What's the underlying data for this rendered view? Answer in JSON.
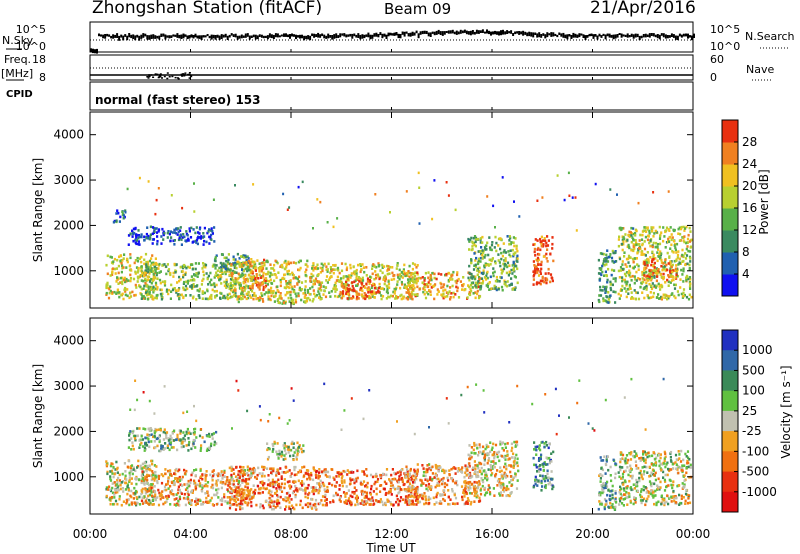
{
  "header": {
    "station": "Zhongshan Station (fitACF)",
    "beam": "Beam 09",
    "date": "21/Apr/2016"
  },
  "top_panels": {
    "nsky_label": "N.Sky",
    "nsky_ticks": [
      "10^5",
      "10^0"
    ],
    "nsearch_label": "N.Search",
    "nsearch_ticks": [
      "10^5",
      "10^0"
    ],
    "freq_label": "Freq.",
    "freq_unit": "[MHz]",
    "freq_ticks": [
      "18",
      "8"
    ],
    "nave_label": "Nave",
    "nave_ticks": [
      "60",
      "0"
    ],
    "cpid_label": "CPID",
    "cpid_value": "normal (fast stereo) 153"
  },
  "chart_data": [
    {
      "type": "heatmap",
      "panel": "power",
      "ylabel": "Slant Range [km]",
      "ylim": [
        180,
        4500
      ],
      "yticks": [
        "1000",
        "2000",
        "3000",
        "4000"
      ],
      "xlim": [
        0,
        24
      ],
      "colorbar_label": "Power [dB]",
      "colorbar_ticks": [
        "4",
        "8",
        "12",
        "16",
        "20",
        "24",
        "28"
      ],
      "colorbar_colors": [
        "#1010f0",
        "#2060b0",
        "#3a8a60",
        "#58b048",
        "#b8d030",
        "#f0c020",
        "#f08020",
        "#e83010"
      ],
      "scatter_regions": [
        {
          "t": [
            0.6,
            2.6
          ],
          "r": [
            400,
            1400
          ],
          "level": 0.6
        },
        {
          "t": [
            0.9,
            1.4
          ],
          "r": [
            2100,
            2400
          ],
          "level": 0.2
        },
        {
          "t": [
            1.5,
            5.0
          ],
          "r": [
            1600,
            2000
          ],
          "level": 0.15
        },
        {
          "t": [
            2.0,
            6.5
          ],
          "r": [
            400,
            1200
          ],
          "level": 0.5
        },
        {
          "t": [
            4.8,
            6.3
          ],
          "r": [
            1000,
            1400
          ],
          "level": 0.35
        },
        {
          "t": [
            5.5,
            9.0
          ],
          "r": [
            300,
            1250
          ],
          "level": 0.6
        },
        {
          "t": [
            6.3,
            7.0
          ],
          "r": [
            600,
            1300
          ],
          "level": 0.85
        },
        {
          "t": [
            9.0,
            13.0
          ],
          "r": [
            400,
            1200
          ],
          "level": 0.6
        },
        {
          "t": [
            10.0,
            11.5
          ],
          "r": [
            400,
            900
          ],
          "level": 0.85
        },
        {
          "t": [
            12.5,
            15.5
          ],
          "r": [
            400,
            1000
          ],
          "level": 0.7
        },
        {
          "t": [
            15.0,
            17.0
          ],
          "r": [
            600,
            1800
          ],
          "level": 0.45
        },
        {
          "t": [
            17.6,
            18.4
          ],
          "r": [
            700,
            1800
          ],
          "level": 0.95
        },
        {
          "t": [
            20.2,
            20.9
          ],
          "r": [
            300,
            1500
          ],
          "level": 0.35
        },
        {
          "t": [
            21.0,
            23.9
          ],
          "r": [
            400,
            2000
          ],
          "level": 0.55
        },
        {
          "t": [
            22.0,
            23.3
          ],
          "r": [
            800,
            1300
          ],
          "level": 0.8
        }
      ]
    },
    {
      "type": "heatmap",
      "panel": "velocity",
      "ylabel": "Slant Range [km]",
      "ylim": [
        180,
        4500
      ],
      "yticks": [
        "1000",
        "2000",
        "3000",
        "4000"
      ],
      "xlim": [
        0,
        24
      ],
      "colorbar_label": "Velocity [m s⁻¹]",
      "colorbar_ticks": [
        "1000",
        "500",
        "100",
        "25",
        "-25",
        "-100",
        "-500",
        "-1000"
      ],
      "colorbar_colors": [
        "#2030c0",
        "#3068a8",
        "#3a8a58",
        "#60c040",
        "#c0c0b0",
        "#f0a020",
        "#f07010",
        "#e83010",
        "#e01010"
      ],
      "scatter_regions": [
        {
          "t": [
            0.6,
            2.6
          ],
          "r": [
            400,
            1400
          ],
          "level": 0.5
        },
        {
          "t": [
            1.5,
            5.0
          ],
          "r": [
            1600,
            2100
          ],
          "level": 0.4
        },
        {
          "t": [
            2.0,
            6.5
          ],
          "r": [
            400,
            1200
          ],
          "level": 0.62
        },
        {
          "t": [
            5.5,
            9.0
          ],
          "r": [
            300,
            1250
          ],
          "level": 0.7
        },
        {
          "t": [
            7.0,
            8.5
          ],
          "r": [
            1400,
            1800
          ],
          "level": 0.45
        },
        {
          "t": [
            9.0,
            13.0
          ],
          "r": [
            400,
            1200
          ],
          "level": 0.7
        },
        {
          "t": [
            12.5,
            15.5
          ],
          "r": [
            400,
            1300
          ],
          "level": 0.65
        },
        {
          "t": [
            15.0,
            17.0
          ],
          "r": [
            600,
            1800
          ],
          "level": 0.55
        },
        {
          "t": [
            17.6,
            18.4
          ],
          "r": [
            700,
            1800
          ],
          "level": 0.3
        },
        {
          "t": [
            20.2,
            20.9
          ],
          "r": [
            300,
            1500
          ],
          "level": 0.35
        },
        {
          "t": [
            21.0,
            23.9
          ],
          "r": [
            400,
            1600
          ],
          "level": 0.5
        }
      ]
    }
  ],
  "x_axis": {
    "label": "Time UT",
    "ticks": [
      "00:00",
      "04:00",
      "08:00",
      "12:00",
      "16:00",
      "20:00",
      "00:00"
    ]
  }
}
